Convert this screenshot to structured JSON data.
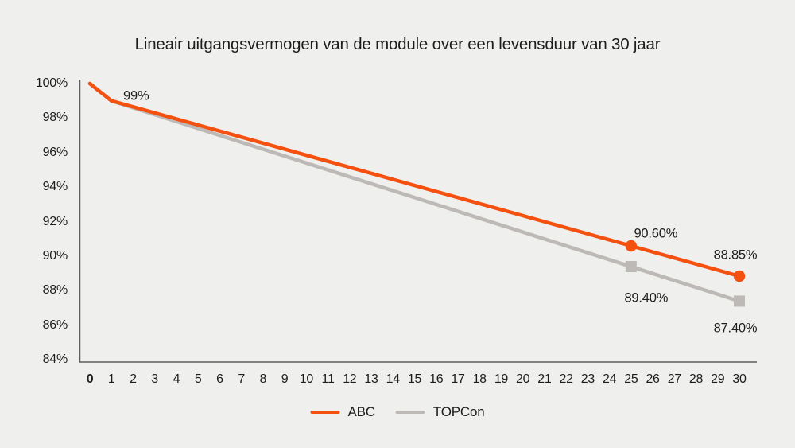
{
  "colors": {
    "background": "#EFEFED",
    "abc": "#F4500F",
    "topcon": "#BCB9B6",
    "text": "#1D1D1B",
    "axis": "#5E5E5E"
  },
  "chart_data": {
    "type": "line",
    "title": "Lineair uitgangsvermogen van de module over een levensduur van 30 jaar",
    "xlabel": "",
    "ylabel": "",
    "xlim": [
      0,
      30
    ],
    "ylim": [
      84,
      100
    ],
    "grid": false,
    "legend_position": "bottom",
    "x_ticks": [
      0,
      1,
      2,
      3,
      4,
      5,
      6,
      7,
      8,
      9,
      10,
      11,
      12,
      13,
      14,
      15,
      16,
      17,
      18,
      19,
      20,
      21,
      22,
      23,
      24,
      25,
      26,
      27,
      28,
      29,
      30
    ],
    "y_ticks": [
      {
        "value": 100,
        "label": "100%"
      },
      {
        "value": 98,
        "label": "98%"
      },
      {
        "value": 96,
        "label": "96%"
      },
      {
        "value": 94,
        "label": "94%"
      },
      {
        "value": 92,
        "label": "92%"
      },
      {
        "value": 90,
        "label": "90%"
      },
      {
        "value": 88,
        "label": "88%"
      },
      {
        "value": 86,
        "label": "86%"
      },
      {
        "value": 84,
        "label": "84%"
      }
    ],
    "series": [
      {
        "name": "ABC",
        "color": "#F4500F",
        "marker": "circle",
        "x": [
          0,
          1,
          25,
          30
        ],
        "values": [
          100,
          99,
          90.6,
          88.85
        ],
        "marker_x": [
          25,
          30
        ]
      },
      {
        "name": "TOPCon",
        "color": "#BCB9B6",
        "marker": "square",
        "x": [
          0,
          1,
          25,
          30
        ],
        "values": [
          100,
          99,
          89.4,
          87.4
        ],
        "marker_x": [
          25,
          30
        ]
      }
    ],
    "annotations": [
      {
        "text": "99%",
        "series": "ABC",
        "x": 1,
        "y": 99
      },
      {
        "text": "90.60%",
        "series": "ABC",
        "x": 25,
        "y": 90.6
      },
      {
        "text": "88.85%",
        "series": "ABC",
        "x": 30,
        "y": 88.85
      },
      {
        "text": "89.40%",
        "series": "TOPCon",
        "x": 25,
        "y": 89.4
      },
      {
        "text": "87.40%",
        "series": "TOPCon",
        "x": 30,
        "y": 87.4
      }
    ]
  },
  "legend": {
    "items": [
      {
        "label": "ABC"
      },
      {
        "label": "TOPCon"
      }
    ]
  }
}
